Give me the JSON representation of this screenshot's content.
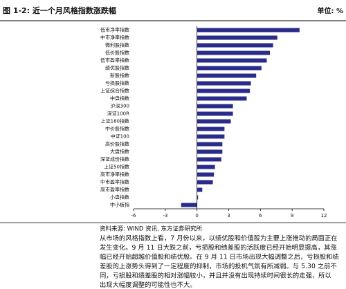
{
  "chart_data": {
    "type": "barh",
    "title": "图 1-2: 近一个月风格指数涨跌幅",
    "unit": "单位: %",
    "categories": [
      "低市净率指数",
      "中市净率指数",
      "微利股指数",
      "低价股指数",
      "低市盈率指数",
      "绩优股指数",
      "新股指数",
      "亏损股指数",
      "上证综合指数",
      "中盘指数",
      "沪深300",
      "深证100R",
      "上证180指数",
      "中价股指数",
      "中证100",
      "高价股指数",
      "大盘指数",
      "深证成份指数",
      "上证50指数",
      "高市净率指数",
      "中市盈率指数",
      "高市盈率指数",
      "小盘指数",
      "中小板指"
    ],
    "values": [
      9.7,
      7.6,
      7.2,
      6.9,
      6.6,
      6.1,
      5.6,
      5.1,
      5.0,
      4.7,
      3.4,
      3.4,
      3.2,
      2.6,
      2.6,
      2.4,
      2.4,
      2.3,
      1.7,
      1.6,
      1.5,
      0.5,
      0.1,
      -1.5
    ],
    "color": "#2b2b8a",
    "xlim": [
      -6,
      12
    ],
    "xticks": [
      -6,
      -3,
      0,
      3,
      6,
      9,
      12
    ],
    "source": "资料来源: WIND 资讯, 东方证券研究所",
    "paragraph_lines": [
      "从市场的风格指数上看，7 月份以来，以绩优股和价值股为主要上涨推动的局面正在",
      "发生变化。9 月 11 日大跌之前，亏损股和绩差股的活跃度已经开始明显提高，其涨",
      "幅已经开始超越价值股和绩优股。在 9 月 11 日市场出现大幅调整之后，亏损股和绩",
      "差股的上涨势头得到了一定程度的抑制，市场的投机气氛有所减弱。与 5.30 之前不",
      "同，亏损股和绩差股的相对涨幅较小，并且并没有出现持续时间很长的走强，所以",
      "出现大幅度调整的可能性也不大。"
    ]
  }
}
